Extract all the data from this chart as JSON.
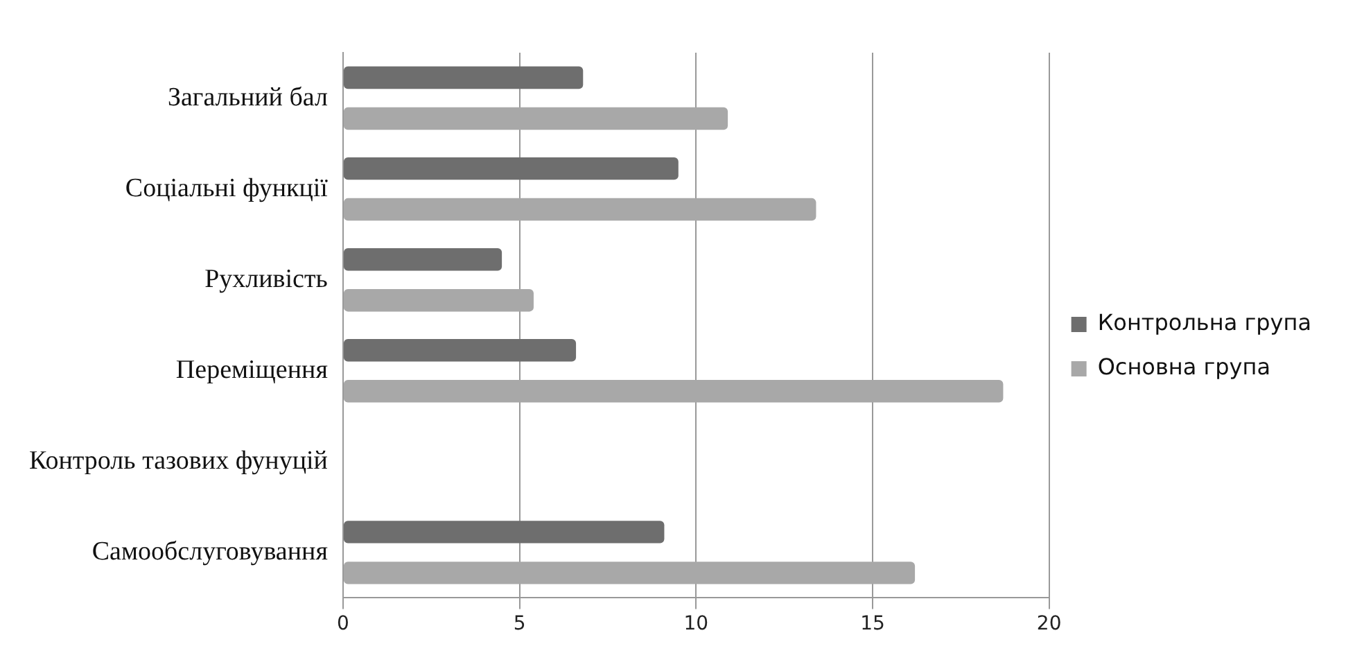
{
  "chart_data": {
    "type": "bar",
    "orientation": "horizontal",
    "categories": [
      "Загальний бал",
      "Соціальні функції",
      "Рухливість",
      "Переміщення",
      "Контроль тазових фунуцій",
      "Самообслуговування"
    ],
    "series": [
      {
        "name": "Контрольна група",
        "color": "#6e6e6e",
        "values": [
          6.8,
          9.5,
          4.5,
          6.6,
          0,
          9.1
        ]
      },
      {
        "name": "Основна група",
        "color": "#a8a8a8",
        "values": [
          10.9,
          13.4,
          5.4,
          18.7,
          0,
          16.2
        ]
      }
    ],
    "xlim": [
      0,
      20
    ],
    "xticks": [
      0,
      5,
      10,
      15,
      20
    ],
    "grid": "x",
    "legend": "right"
  }
}
